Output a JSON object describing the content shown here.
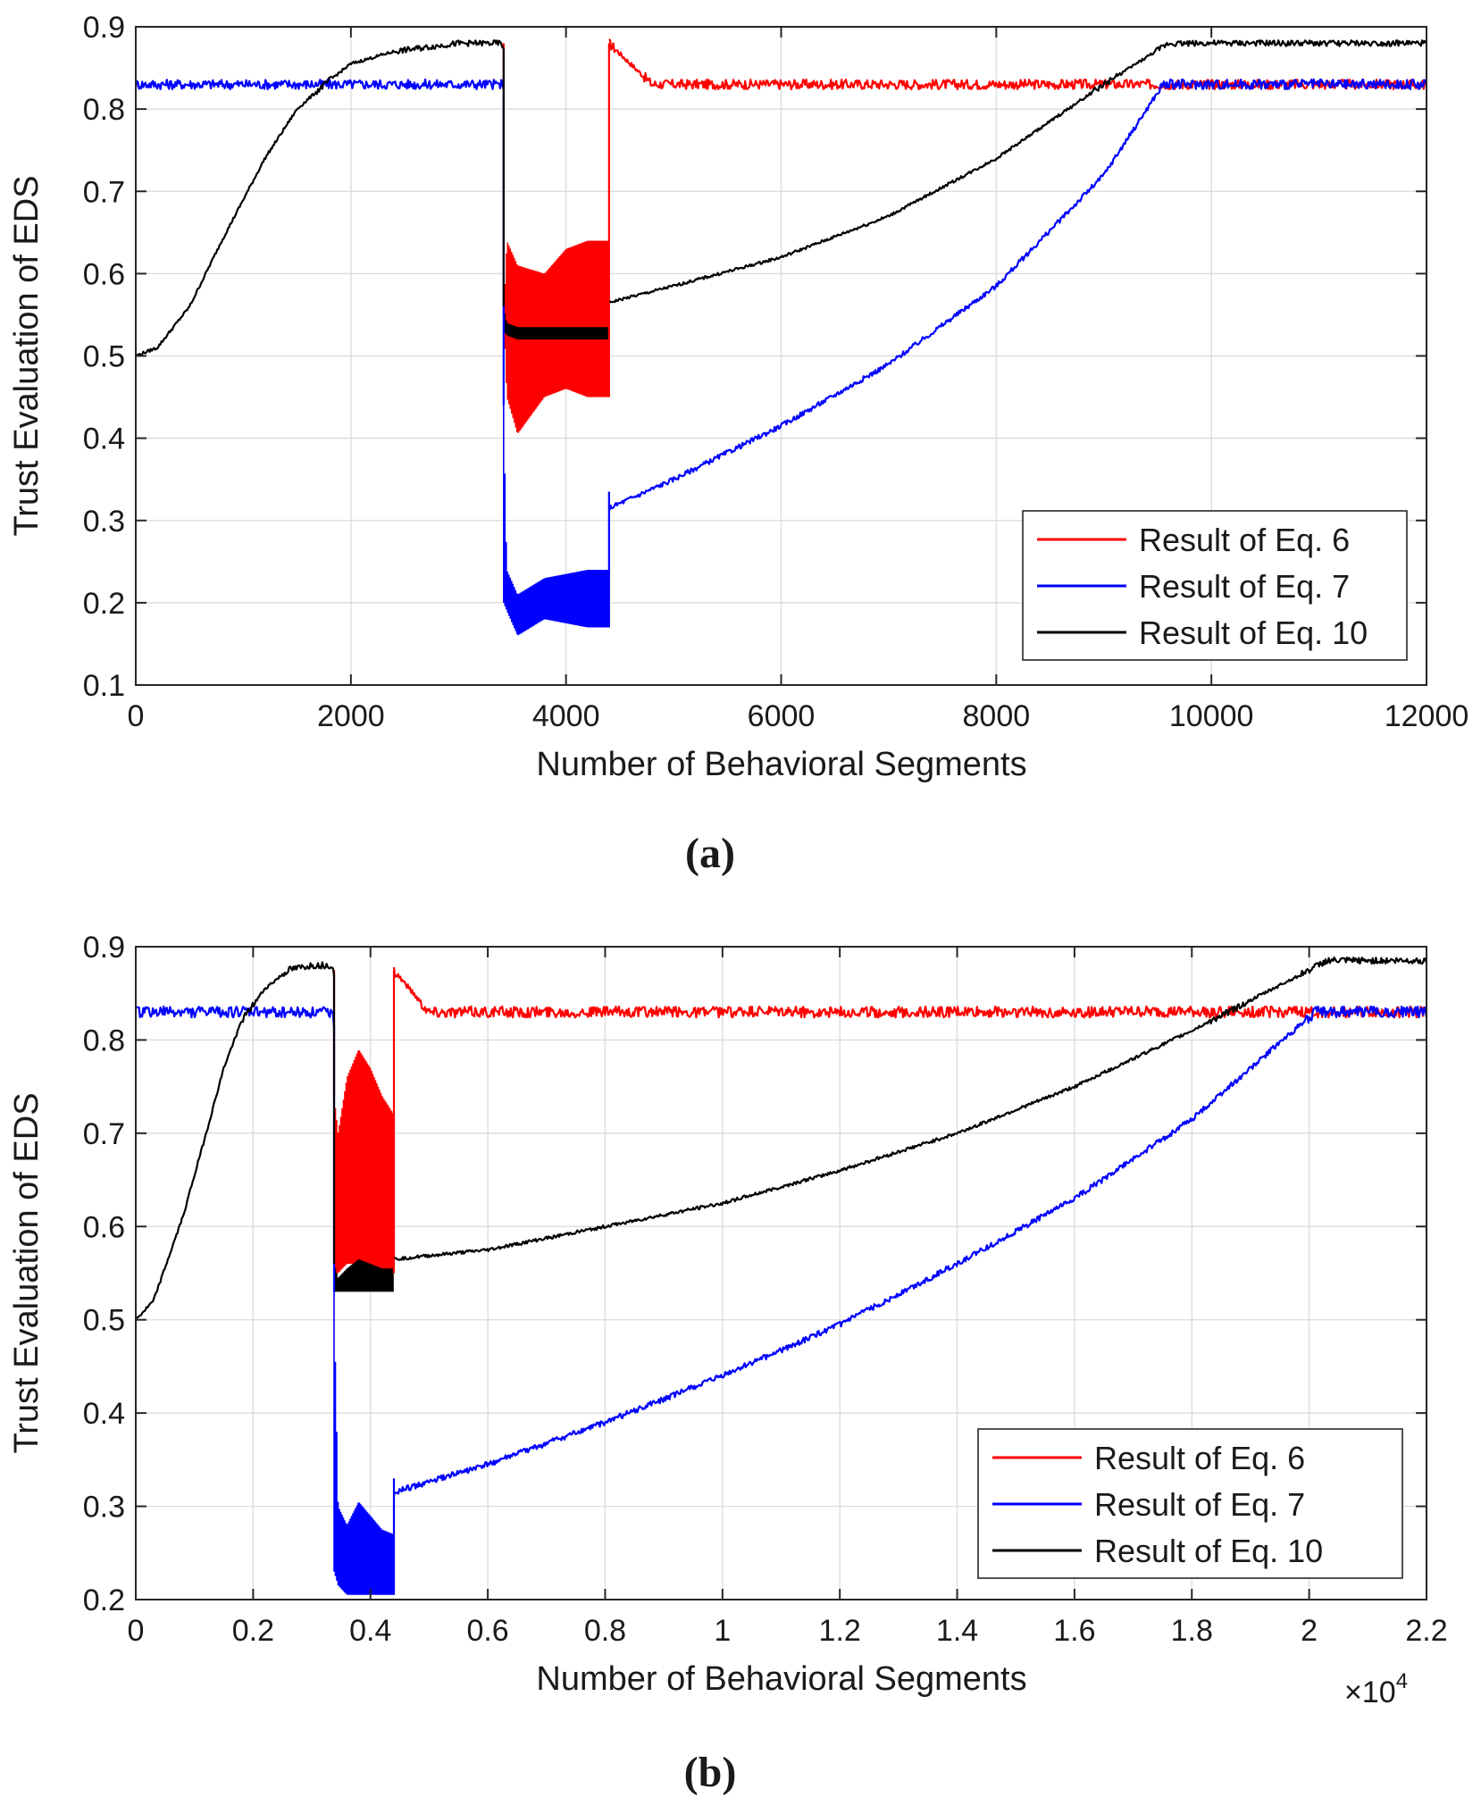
{
  "chart_data": [
    {
      "type": "line",
      "panel": "(a)",
      "xlabel": "Number of Behavioral Segments",
      "ylabel": "Trust Evaluation of EDS",
      "xlim": [
        0,
        12000
      ],
      "ylim": [
        0.1,
        0.9
      ],
      "xticks": [
        0,
        2000,
        4000,
        6000,
        8000,
        10000,
        12000
      ],
      "xtick_labels": [
        "0",
        "2000",
        "4000",
        "6000",
        "8000",
        "10000",
        "12000"
      ],
      "yticks": [
        0.1,
        0.2,
        0.3,
        0.4,
        0.5,
        0.6,
        0.7,
        0.8,
        0.9
      ],
      "ytick_labels": [
        "0.1",
        "0.2",
        "0.3",
        "0.4",
        "0.5",
        "0.6",
        "0.7",
        "0.8",
        "0.9"
      ],
      "grid": true,
      "legend_position": "bottom-right",
      "series": [
        {
          "name": "Result of Eq. 6",
          "color": "#ff0000",
          "x": [
            4400,
            4800,
            5500,
            6500,
            7500,
            8500,
            9500,
            10500,
            11500,
            12000
          ],
          "y": [
            0.88,
            0.83,
            0.83,
            0.83,
            0.83,
            0.83,
            0.83,
            0.83,
            0.83,
            0.83
          ],
          "oscillation": {
            "x_range": [
              3400,
              4400
            ],
            "lower": [
              0.55,
              0.45,
              0.405,
              0.45,
              0.46,
              0.45,
              0.45
            ],
            "upper": [
              0.55,
              0.64,
              0.61,
              0.6,
              0.63,
              0.64,
              0.64
            ],
            "x": [
              3420,
              3450,
              3550,
              3800,
              4000,
              4200,
              4400
            ]
          }
        },
        {
          "name": "Result of Eq. 7",
          "color": "#0000ff",
          "x": [
            0,
            1000,
            2000,
            3000,
            3400,
            4400,
            5000,
            6000,
            7000,
            8000,
            9000,
            9550,
            10500,
            11500,
            12000
          ],
          "y": [
            0.83,
            0.83,
            0.83,
            0.83,
            0.83,
            0.315,
            0.35,
            0.415,
            0.49,
            0.585,
            0.72,
            0.83,
            0.83,
            0.83,
            0.83
          ],
          "oscillation": {
            "x": [
              3420,
              3450,
              3550,
              3800,
              4000,
              4200,
              4400
            ],
            "lower": [
              0.2,
              0.19,
              0.16,
              0.18,
              0.175,
              0.17,
              0.17
            ],
            "upper": [
              0.44,
              0.24,
              0.21,
              0.23,
              0.235,
              0.24,
              0.24
            ]
          }
        },
        {
          "name": "Result of Eq. 10",
          "color": "#000000",
          "x": [
            0,
            200,
            500,
            800,
            1000,
            1200,
            1500,
            1800,
            2000,
            2400,
            3000,
            3400,
            4400,
            5000,
            6000,
            7000,
            8000,
            9000,
            9600,
            10500,
            11500,
            12000
          ],
          "y": [
            0.5,
            0.51,
            0.56,
            0.64,
            0.69,
            0.74,
            0.8,
            0.835,
            0.855,
            0.87,
            0.88,
            0.88,
            0.565,
            0.585,
            0.62,
            0.67,
            0.74,
            0.83,
            0.88,
            0.88,
            0.88,
            0.88
          ],
          "oscillation": {
            "x": [
              3420,
              3450,
              3550,
              3800,
              4000,
              4200,
              4400
            ],
            "lower": [
              0.53,
              0.525,
              0.52,
              0.52,
              0.52,
              0.52,
              0.52
            ],
            "upper": [
              0.56,
              0.54,
              0.535,
              0.535,
              0.535,
              0.535,
              0.535
            ]
          }
        }
      ]
    },
    {
      "type": "line",
      "panel": "(b)",
      "xlabel": "Number of Behavioral Segments",
      "ylabel": "Trust Evaluation of EDS",
      "x_multiplier": "×10",
      "x_multiplier_exp": "4",
      "xlim": [
        0,
        2.2
      ],
      "ylim": [
        0.2,
        0.9
      ],
      "xticks": [
        0,
        0.2,
        0.4,
        0.6,
        0.8,
        1,
        1.2,
        1.4,
        1.6,
        1.8,
        2,
        2.2
      ],
      "xtick_labels": [
        "0",
        "0.2",
        "0.4",
        "0.6",
        "0.8",
        "1",
        "1.2",
        "1.4",
        "1.6",
        "1.8",
        "2",
        "2.2"
      ],
      "yticks": [
        0.2,
        0.3,
        0.4,
        0.5,
        0.6,
        0.7,
        0.8,
        0.9
      ],
      "ytick_labels": [
        "0.2",
        "0.3",
        "0.4",
        "0.5",
        "0.6",
        "0.7",
        "0.8",
        "0.9"
      ],
      "grid": true,
      "legend_position": "bottom-right",
      "series": [
        {
          "name": "Result of Eq. 6",
          "color": "#ff0000",
          "x": [
            0.44,
            0.5,
            0.7,
            1.0,
            1.2,
            1.4,
            1.6,
            1.8,
            2.0,
            2.2
          ],
          "y": [
            0.875,
            0.83,
            0.83,
            0.83,
            0.83,
            0.83,
            0.83,
            0.83,
            0.83,
            0.83
          ],
          "oscillation": {
            "x": [
              0.338,
              0.345,
              0.36,
              0.38,
              0.4,
              0.42,
              0.44
            ],
            "lower": [
              0.55,
              0.55,
              0.56,
              0.56,
              0.555,
              0.55,
              0.55
            ],
            "upper": [
              0.74,
              0.7,
              0.76,
              0.79,
              0.77,
              0.74,
              0.72
            ]
          }
        },
        {
          "name": "Result of Eq. 7",
          "color": "#0000ff",
          "x": [
            0,
            0.2,
            0.335,
            0.44,
            0.6,
            0.8,
            1.0,
            1.2,
            1.4,
            1.6,
            1.8,
            2.01,
            2.1,
            2.2
          ],
          "y": [
            0.83,
            0.83,
            0.83,
            0.315,
            0.345,
            0.39,
            0.44,
            0.495,
            0.56,
            0.63,
            0.715,
            0.83,
            0.83,
            0.83
          ],
          "oscillation": {
            "x": [
              0.338,
              0.345,
              0.36,
              0.38,
              0.4,
              0.42,
              0.44
            ],
            "lower": [
              0.23,
              0.215,
              0.205,
              0.205,
              0.205,
              0.205,
              0.205
            ],
            "upper": [
              0.53,
              0.3,
              0.28,
              0.305,
              0.29,
              0.275,
              0.27
            ]
          }
        },
        {
          "name": "Result of Eq. 10",
          "color": "#000000",
          "x": [
            0,
            0.03,
            0.08,
            0.12,
            0.15,
            0.18,
            0.22,
            0.26,
            0.3,
            0.335,
            0.44,
            0.6,
            0.8,
            1.0,
            1.2,
            1.4,
            1.6,
            1.8,
            2.0,
            2.03,
            2.1,
            2.2
          ],
          "y": [
            0.5,
            0.52,
            0.61,
            0.7,
            0.77,
            0.82,
            0.855,
            0.875,
            0.88,
            0.88,
            0.565,
            0.575,
            0.6,
            0.625,
            0.66,
            0.7,
            0.75,
            0.81,
            0.875,
            0.885,
            0.885,
            0.885
          ],
          "oscillation": {
            "x": [
              0.338,
              0.345,
              0.36,
              0.38,
              0.4,
              0.42,
              0.44
            ],
            "lower": [
              0.53,
              0.53,
              0.53,
              0.53,
              0.53,
              0.53,
              0.53
            ],
            "upper": [
              0.56,
              0.545,
              0.555,
              0.565,
              0.56,
              0.555,
              0.555
            ]
          }
        }
      ]
    }
  ]
}
